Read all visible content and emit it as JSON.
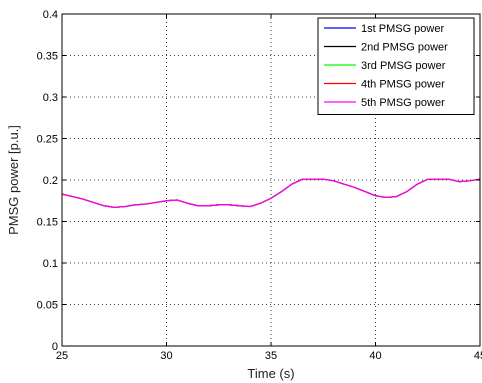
{
  "chart_data": {
    "type": "line",
    "xlabel": "Time (s)",
    "ylabel": "PMSG power [p.u.]",
    "xlim": [
      25,
      45
    ],
    "ylim": [
      0,
      0.4
    ],
    "x_ticks": [
      25,
      30,
      35,
      40,
      45
    ],
    "y_ticks": [
      0,
      0.05,
      0.1,
      0.15,
      0.2,
      0.25,
      0.3,
      0.35,
      0.4
    ],
    "x_tick_labels": [
      "25",
      "30",
      "35",
      "40",
      "45"
    ],
    "y_tick_labels": [
      "0",
      "0.05",
      "0.1",
      "0.15",
      "0.2",
      "0.25",
      "0.3",
      "0.35",
      "0.4"
    ],
    "grid": true,
    "legend_position": "top-right",
    "x": [
      25,
      25.5,
      26,
      26.5,
      27,
      27.5,
      28,
      28.5,
      29,
      29.5,
      30,
      30.5,
      31,
      31.5,
      32,
      32.5,
      33,
      33.5,
      34,
      34.5,
      35,
      35.5,
      36,
      36.5,
      37,
      37.5,
      38,
      38.5,
      39,
      39.5,
      40,
      40.5,
      41,
      41.5,
      42,
      42.5,
      43,
      43.5,
      44,
      44.5,
      45
    ],
    "series": [
      {
        "name": "1st PMSG power",
        "color": "#0000ff",
        "values": [
          0.183,
          0.18,
          0.177,
          0.173,
          0.169,
          0.167,
          0.168,
          0.17,
          0.171,
          0.173,
          0.175,
          0.176,
          0.172,
          0.169,
          0.169,
          0.17,
          0.17,
          0.169,
          0.168,
          0.172,
          0.178,
          0.186,
          0.195,
          0.201,
          0.201,
          0.201,
          0.199,
          0.195,
          0.191,
          0.186,
          0.181,
          0.179,
          0.18,
          0.186,
          0.195,
          0.201,
          0.201,
          0.201,
          0.198,
          0.199,
          0.201
        ]
      },
      {
        "name": "2nd PMSG power",
        "color": "#000000",
        "values": [
          0.183,
          0.18,
          0.177,
          0.173,
          0.169,
          0.167,
          0.168,
          0.17,
          0.171,
          0.173,
          0.175,
          0.176,
          0.172,
          0.169,
          0.169,
          0.17,
          0.17,
          0.169,
          0.168,
          0.172,
          0.178,
          0.186,
          0.195,
          0.201,
          0.201,
          0.201,
          0.199,
          0.195,
          0.191,
          0.186,
          0.181,
          0.179,
          0.18,
          0.186,
          0.195,
          0.201,
          0.201,
          0.201,
          0.198,
          0.199,
          0.201
        ]
      },
      {
        "name": "3rd PMSG power",
        "color": "#00ff00",
        "values": [
          0.183,
          0.18,
          0.177,
          0.173,
          0.169,
          0.167,
          0.168,
          0.17,
          0.171,
          0.173,
          0.175,
          0.176,
          0.172,
          0.169,
          0.169,
          0.17,
          0.17,
          0.169,
          0.168,
          0.172,
          0.178,
          0.186,
          0.195,
          0.201,
          0.201,
          0.201,
          0.199,
          0.195,
          0.191,
          0.186,
          0.181,
          0.179,
          0.18,
          0.186,
          0.195,
          0.201,
          0.201,
          0.201,
          0.198,
          0.199,
          0.201
        ]
      },
      {
        "name": "4th PMSG power",
        "color": "#ff0000",
        "values": [
          0.183,
          0.18,
          0.177,
          0.173,
          0.169,
          0.167,
          0.168,
          0.17,
          0.171,
          0.173,
          0.175,
          0.176,
          0.172,
          0.169,
          0.169,
          0.17,
          0.17,
          0.169,
          0.168,
          0.172,
          0.178,
          0.186,
          0.195,
          0.201,
          0.201,
          0.201,
          0.199,
          0.195,
          0.191,
          0.186,
          0.181,
          0.179,
          0.18,
          0.186,
          0.195,
          0.201,
          0.201,
          0.201,
          0.198,
          0.199,
          0.201
        ]
      },
      {
        "name": "5th PMSG power",
        "color": "#ff00ff",
        "values": [
          0.183,
          0.18,
          0.177,
          0.173,
          0.169,
          0.167,
          0.168,
          0.17,
          0.171,
          0.173,
          0.175,
          0.176,
          0.172,
          0.169,
          0.169,
          0.17,
          0.17,
          0.169,
          0.168,
          0.172,
          0.178,
          0.186,
          0.195,
          0.201,
          0.201,
          0.201,
          0.199,
          0.195,
          0.191,
          0.186,
          0.181,
          0.179,
          0.18,
          0.186,
          0.195,
          0.201,
          0.201,
          0.201,
          0.198,
          0.199,
          0.201
        ]
      }
    ]
  }
}
